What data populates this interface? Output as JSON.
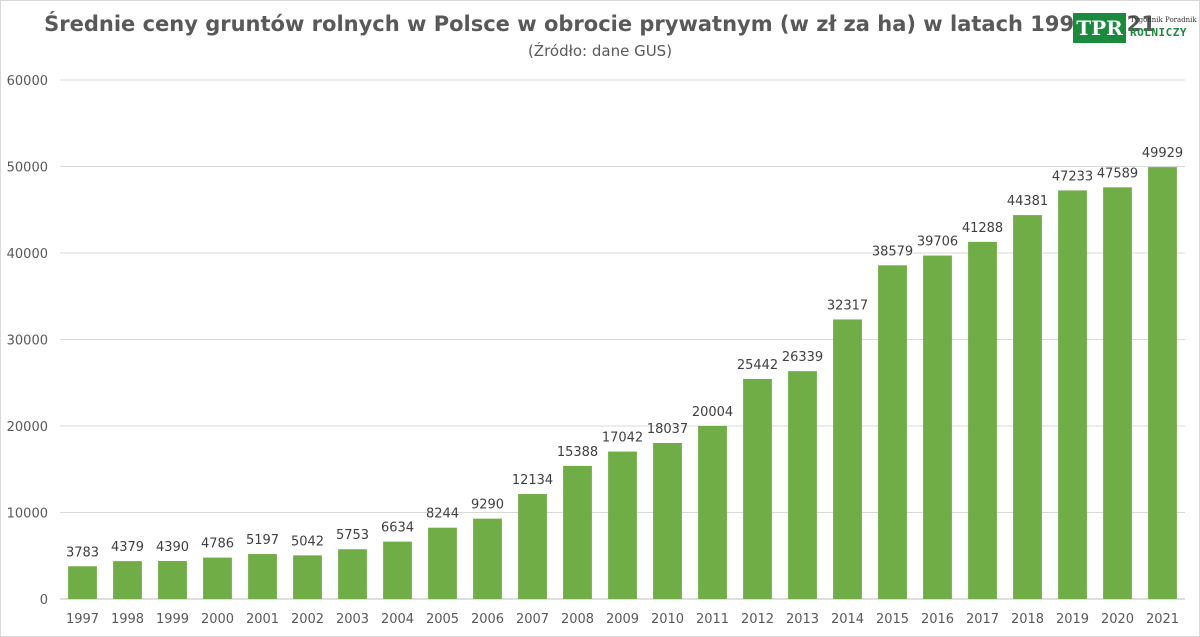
{
  "chart_data": {
    "type": "bar",
    "title": "Średnie ceny gruntów rolnych w Polsce w obrocie prywatnym (w zł za ha) w latach 1997-2021",
    "subtitle": "(Źródło: dane GUS)",
    "categories": [
      "1997",
      "1998",
      "1999",
      "2000",
      "2001",
      "2002",
      "2003",
      "2004",
      "2005",
      "2006",
      "2007",
      "2008",
      "2009",
      "2010",
      "2011",
      "2012",
      "2013",
      "2014",
      "2015",
      "2016",
      "2017",
      "2018",
      "2019",
      "2020",
      "2021"
    ],
    "values": [
      3783,
      4379,
      4390,
      4786,
      5197,
      5042,
      5753,
      6634,
      8244,
      9290,
      12134,
      15388,
      17042,
      18037,
      20004,
      25442,
      26339,
      32317,
      38579,
      39706,
      41288,
      44381,
      47233,
      47589,
      49929
    ],
    "ylim": [
      0,
      60000
    ],
    "yticks": [
      0,
      10000,
      20000,
      30000,
      40000,
      50000,
      60000
    ],
    "grid": true,
    "legend": "none",
    "bar_color": "#70ad47",
    "grid_color": "#d9d9d9"
  },
  "logo": {
    "mark": "TPR",
    "small_text": "Tygodnik Poradnik",
    "main_text": "ROLNICZY",
    "color": "#1a8a3c"
  }
}
